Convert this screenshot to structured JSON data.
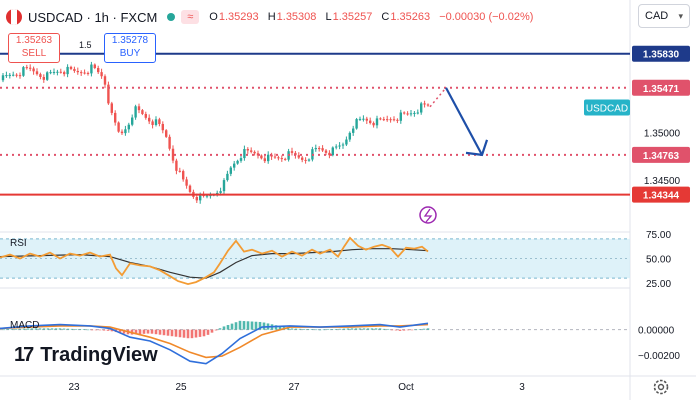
{
  "header": {
    "symbol": "USDCAD · 1h · FXCM",
    "open_key": "O",
    "open": "1.35293",
    "high_key": "H",
    "high": "1.35308",
    "low_key": "L",
    "low": "1.35257",
    "close_key": "C",
    "close": "1.35263",
    "change": "−0.00030 (−0.02%)",
    "currency": "CAD"
  },
  "trade": {
    "sell_price": "1.35263",
    "sell_label": "SELL",
    "buy_price": "1.35278",
    "buy_label": "BUY",
    "spread": "1.5"
  },
  "branding": {
    "logo_mark": "17",
    "logo_text": "TradingView"
  },
  "colors": {
    "up": "#26a69a",
    "down": "#ef5350",
    "resistance": "#1e3a8a",
    "support": "#e53935",
    "dotted": "#e0526b",
    "arrow": "#1e4fa8",
    "rsi_line": "#f39c34",
    "rsi_ma": "#333333",
    "macd_line": "#2f6fdb",
    "signal_line": "#f0892a"
  },
  "chart_data": [
    {
      "type": "candlestick",
      "title": "USDCAD · 1h · FXCM",
      "x_ticks": [
        "23",
        "25",
        "27",
        "Oct",
        "3"
      ],
      "y_ticks": [
        "1.35000",
        "1.34500"
      ],
      "ylim": [
        1.3395,
        1.3608
      ],
      "levels": [
        {
          "label": "1.35830",
          "value": 1.3583,
          "style": "solid",
          "color": "#1e3a8a"
        },
        {
          "label": "1.35471",
          "value": 1.35471,
          "style": "dotted",
          "color": "#e0526b"
        },
        {
          "label": "1.34763",
          "value": 1.34763,
          "style": "dotted",
          "color": "#e0526b"
        },
        {
          "label": "1.34344",
          "value": 1.34344,
          "style": "solid",
          "color": "#e53935"
        }
      ],
      "price_tag": {
        "label": "USDCAD",
        "value": 1.35263
      },
      "close_path": [
        [
          0,
          1.3555
        ],
        [
          14,
          1.3562
        ],
        [
          30,
          1.3566
        ],
        [
          46,
          1.3559
        ],
        [
          60,
          1.3566
        ],
        [
          76,
          1.3563
        ],
        [
          92,
          1.3568
        ],
        [
          104,
          1.3558
        ],
        [
          112,
          1.3515
        ],
        [
          120,
          1.3496
        ],
        [
          128,
          1.3509
        ],
        [
          134,
          1.3525
        ],
        [
          146,
          1.3516
        ],
        [
          158,
          1.3508
        ],
        [
          166,
          1.3496
        ],
        [
          174,
          1.347
        ],
        [
          182,
          1.345
        ],
        [
          192,
          1.3435
        ],
        [
          202,
          1.3429
        ],
        [
          214,
          1.3436
        ],
        [
          224,
          1.3446
        ],
        [
          232,
          1.3465
        ],
        [
          242,
          1.3478
        ],
        [
          256,
          1.3478
        ],
        [
          270,
          1.3472
        ],
        [
          290,
          1.3476
        ],
        [
          304,
          1.3472
        ],
        [
          318,
          1.3483
        ],
        [
          332,
          1.3479
        ],
        [
          344,
          1.3488
        ],
        [
          352,
          1.3508
        ],
        [
          364,
          1.3514
        ],
        [
          378,
          1.351
        ],
        [
          392,
          1.3516
        ],
        [
          406,
          1.3518
        ],
        [
          420,
          1.3526
        ],
        [
          430,
          1.3527
        ]
      ],
      "forecast": [
        [
          430,
          1.3527
        ],
        [
          446,
          1.35471
        ],
        [
          482,
          1.34763
        ]
      ]
    },
    {
      "type": "line",
      "title": "RSI",
      "y_ticks": [
        "75.00",
        "50.00",
        "25.00"
      ],
      "ylim": [
        20,
        77
      ],
      "band": [
        30,
        70
      ],
      "series": [
        {
          "points": [
            [
              0,
              51
            ],
            [
              10,
              54
            ],
            [
              20,
              50
            ],
            [
              30,
              55
            ],
            [
              40,
              52
            ],
            [
              50,
              56
            ],
            [
              60,
              50
            ],
            [
              70,
              55
            ],
            [
              80,
              53
            ],
            [
              90,
              56
            ],
            [
              100,
              52
            ],
            [
              110,
              54
            ],
            [
              116,
              40
            ],
            [
              122,
              33
            ],
            [
              130,
              45
            ],
            [
              140,
              43
            ],
            [
              150,
              42
            ],
            [
              160,
              38
            ],
            [
              170,
              32
            ],
            [
              178,
              27
            ],
            [
              188,
              24
            ],
            [
              196,
              26
            ],
            [
              206,
              31
            ],
            [
              214,
              36
            ],
            [
              220,
              45
            ],
            [
              228,
              58
            ],
            [
              236,
              68
            ],
            [
              244,
              57
            ],
            [
              252,
              59
            ],
            [
              262,
              55
            ],
            [
              272,
              58
            ],
            [
              282,
              52
            ],
            [
              292,
              57
            ],
            [
              302,
              53
            ],
            [
              312,
              59
            ],
            [
              320,
              55
            ],
            [
              330,
              59
            ],
            [
              338,
              52
            ],
            [
              344,
              62
            ],
            [
              350,
              71
            ],
            [
              358,
              63
            ],
            [
              366,
              59
            ],
            [
              374,
              62
            ],
            [
              382,
              64
            ],
            [
              390,
              61
            ],
            [
              398,
              52
            ],
            [
              406,
              61
            ],
            [
              414,
              60
            ],
            [
              422,
              62
            ],
            [
              428,
              57
            ]
          ]
        },
        {
          "points": [
            [
              0,
              52
            ],
            [
              40,
              53
            ],
            [
              80,
              54
            ],
            [
              110,
              52
            ],
            [
              130,
              46
            ],
            [
              150,
              42
            ],
            [
              170,
              36
            ],
            [
              190,
              31
            ],
            [
              206,
              30
            ],
            [
              220,
              36
            ],
            [
              236,
              46
            ],
            [
              252,
              53
            ],
            [
              272,
              55
            ],
            [
              292,
              55
            ],
            [
              312,
              56
            ],
            [
              332,
              57
            ],
            [
              352,
              59
            ],
            [
              372,
              60
            ],
            [
              392,
              60
            ],
            [
              412,
              59
            ],
            [
              428,
              58
            ]
          ]
        }
      ]
    },
    {
      "type": "macd",
      "title": "MACD",
      "y_ticks": [
        "0.00000",
        "−0.00200"
      ],
      "ylim": [
        -0.0032,
        0.0014
      ],
      "x_ticks": [
        "23",
        "25",
        "27",
        "Oct",
        "3"
      ],
      "series": [
        {
          "points": [
            [
              0,
              0.0001
            ],
            [
              30,
              0.0003
            ],
            [
              60,
              0.0004
            ],
            [
              90,
              0.0003
            ],
            [
              110,
              0.0001
            ],
            [
              130,
              -0.0006
            ],
            [
              150,
              -0.0009
            ],
            [
              170,
              -0.0016
            ],
            [
              190,
              -0.0025
            ],
            [
              206,
              -0.0027
            ],
            [
              222,
              -0.0019
            ],
            [
              240,
              -0.0007
            ],
            [
              262,
              0.0002
            ],
            [
              290,
              0.0003
            ],
            [
              320,
              0.0002
            ],
            [
              350,
              0.0003
            ],
            [
              380,
              0.0004
            ],
            [
              400,
              0.0002
            ],
            [
              428,
              0.0005
            ]
          ]
        },
        {
          "points": [
            [
              0,
              0.0001
            ],
            [
              30,
              0.0002
            ],
            [
              60,
              0.0003
            ],
            [
              90,
              0.0003
            ],
            [
              110,
              0.0002
            ],
            [
              130,
              -0.0002
            ],
            [
              150,
              -0.0006
            ],
            [
              170,
              -0.0011
            ],
            [
              190,
              -0.0018
            ],
            [
              206,
              -0.0022
            ],
            [
              222,
              -0.0021
            ],
            [
              240,
              -0.0014
            ],
            [
              262,
              -0.0004
            ],
            [
              290,
              0.0002
            ],
            [
              320,
              0.0002
            ],
            [
              350,
              0.0002
            ],
            [
              380,
              0.0003
            ],
            [
              400,
              0.0003
            ],
            [
              428,
              0.0004
            ]
          ]
        }
      ]
    }
  ]
}
